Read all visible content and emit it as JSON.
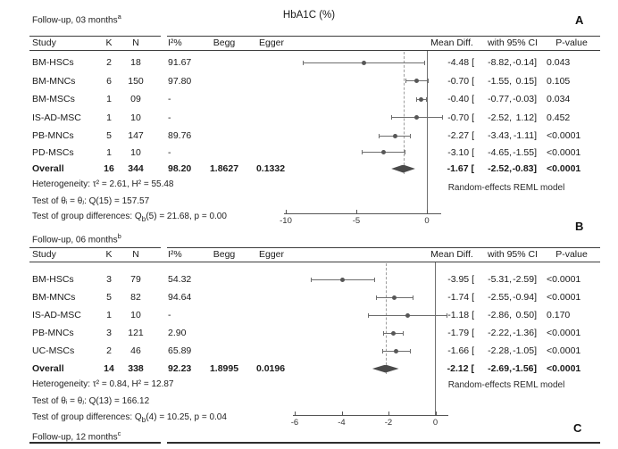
{
  "colors": {
    "text": "#1a1a1a",
    "rule": "#3d3d3d",
    "marker": "#575757",
    "diamond": "#4a4a4a",
    "dashed_reference": "#9d9d9d",
    "background": "#ffffff"
  },
  "columns": {
    "study": "Study",
    "k": "K",
    "n": "N",
    "i2": "I²%",
    "begg": "Begg",
    "egger": "Egger",
    "mean": "Mean Diff.",
    "ci": "with 95% CI",
    "p": "P-value"
  },
  "chart_data": [
    {
      "type": "forest",
      "panel_label": "A",
      "section_label": "Follow-up, 03 months",
      "section_sup": "a",
      "title": "HbA1C (%)",
      "effect_measure": "Mean Diff.",
      "axis_ticks": [
        -10,
        -5,
        0
      ],
      "rows": [
        {
          "study": "BM-HSCs",
          "k": "2",
          "n": "18",
          "i2": "91.67",
          "mean": -4.48,
          "lo": -8.82,
          "hi": -0.14,
          "p": "0.043"
        },
        {
          "study": "BM-MNCs",
          "k": "6",
          "n": "150",
          "i2": "97.80",
          "mean": -0.7,
          "lo": -1.55,
          "hi": 0.15,
          "p": "0.105"
        },
        {
          "study": "BM-MSCs",
          "k": "1",
          "n": "09",
          "i2": "-",
          "mean": -0.4,
          "lo": -0.77,
          "hi": -0.03,
          "p": "0.034"
        },
        {
          "study": "IS-AD-MSC",
          "k": "1",
          "n": "10",
          "i2": "-",
          "mean": -0.7,
          "lo": -2.52,
          "hi": 1.12,
          "p": "0.452"
        },
        {
          "study": "PB-MNCs",
          "k": "5",
          "n": "147",
          "i2": "89.76",
          "mean": -2.27,
          "lo": -3.43,
          "hi": -1.11,
          "p": "<0.0001"
        },
        {
          "study": "PD-MSCs",
          "k": "1",
          "n": "10",
          "i2": "-",
          "mean": -3.1,
          "lo": -4.65,
          "hi": -1.55,
          "p": "<0.0001"
        }
      ],
      "overall": {
        "study": "Overall",
        "k": "16",
        "n": "344",
        "i2": "98.20",
        "begg": "1.8627",
        "egger": "0.1332",
        "mean": -1.67,
        "lo": -2.52,
        "hi": -0.83,
        "p": "<0.0001"
      },
      "footers": {
        "heterogeneity": "Heterogeneity: τ² = 2.61, H² = 55.48",
        "theta_test": "Test of θᵢ = θⱼ: Q(15) = 157.57",
        "group_diff": {
          "pre": "Test of group differences: Q",
          "sub": "b",
          "post": "(5) = 21.68, p = 0.00"
        }
      },
      "model_note": "Random-effects REML model"
    },
    {
      "type": "forest",
      "panel_label": "B",
      "section_label": "Follow-up, 06 months",
      "section_sup": "b",
      "title": "",
      "effect_measure": "Mean Diff.",
      "axis_ticks": [
        -6,
        -4,
        -2,
        0
      ],
      "rows": [
        {
          "study": "BM-HSCs",
          "k": "3",
          "n": "79",
          "i2": "54.32",
          "mean": -3.95,
          "lo": -5.31,
          "hi": -2.59,
          "p": "<0.0001"
        },
        {
          "study": "BM-MNCs",
          "k": "5",
          "n": "82",
          "i2": "94.64",
          "mean": -1.74,
          "lo": -2.55,
          "hi": -0.94,
          "p": "<0.0001"
        },
        {
          "study": "IS-AD-MSC",
          "k": "1",
          "n": "10",
          "i2": "-",
          "mean": -1.18,
          "lo": -2.86,
          "hi": 0.5,
          "p": "0.170"
        },
        {
          "study": "PB-MNCs",
          "k": "3",
          "n": "121",
          "i2": "2.90",
          "mean": -1.79,
          "lo": -2.22,
          "hi": -1.36,
          "p": "<0.0001"
        },
        {
          "study": "UC-MSCs",
          "k": "2",
          "n": "46",
          "i2": "65.89",
          "mean": -1.66,
          "lo": -2.28,
          "hi": -1.05,
          "p": "<0.0001"
        }
      ],
      "overall": {
        "study": "Overall",
        "k": "14",
        "n": "338",
        "i2": "92.23",
        "begg": "1.8995",
        "egger": "0.0196",
        "mean": -2.12,
        "lo": -2.69,
        "hi": -1.56,
        "p": "<0.0001"
      },
      "footers": {
        "heterogeneity": "Heterogeneity: τ² = 0.84, H² = 12.87",
        "theta_test": "Test of θᵢ = θⱼ: Q(13) = 166.12",
        "group_diff": {
          "pre": "Test of group differences: Q",
          "sub": "b",
          "post": "(4) = 10.25, p = 0.04"
        }
      },
      "model_note": "Random-effects REML model"
    },
    {
      "type": "stub",
      "panel_label": "C",
      "section_label": "Follow-up, 12 months",
      "section_sup": "c"
    }
  ]
}
